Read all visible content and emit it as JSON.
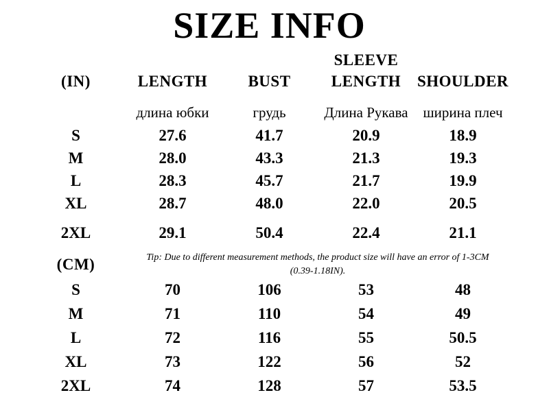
{
  "title": "SIZE INFO",
  "header": {
    "unit_in": "(IN)",
    "sleeve_line1": "SLEEVE",
    "labels": [
      "LENGTH",
      "BUST",
      "LENGTH",
      "SHOULDER"
    ],
    "labels_ru": [
      "длина юбки",
      "грудь",
      "Длина Рукава",
      "ширина плеч"
    ]
  },
  "in_rows": [
    {
      "size": "S",
      "values": [
        "27.6",
        "41.7",
        "20.9",
        "18.9"
      ]
    },
    {
      "size": "M",
      "values": [
        "28.0",
        "43.3",
        "21.3",
        "19.3"
      ]
    },
    {
      "size": "L",
      "values": [
        "28.3",
        "45.7",
        "21.7",
        "19.9"
      ]
    },
    {
      "size": "XL",
      "values": [
        "28.7",
        "48.0",
        "22.0",
        "20.5"
      ]
    },
    {
      "size": "2XL",
      "values": [
        "29.1",
        "50.4",
        "22.4",
        "21.1"
      ]
    }
  ],
  "cm_header": {
    "unit_cm": "(CM)"
  },
  "tip": {
    "line1": "Tip: Due to different measurement methods, the product size will have an error of 1-3CM",
    "line2": "(0.39-1.18IN)."
  },
  "cm_rows": [
    {
      "size": "S",
      "values": [
        "70",
        "106",
        "53",
        "48"
      ]
    },
    {
      "size": "M",
      "values": [
        "71",
        "110",
        "54",
        "49"
      ]
    },
    {
      "size": "L",
      "values": [
        "72",
        "116",
        "55",
        "50.5"
      ]
    },
    {
      "size": "XL",
      "values": [
        "73",
        "122",
        "56",
        "52"
      ]
    },
    {
      "size": "2XL",
      "values": [
        "74",
        "128",
        "57",
        "53.5"
      ]
    }
  ],
  "colors": {
    "text": "#000000",
    "background": "#ffffff"
  }
}
